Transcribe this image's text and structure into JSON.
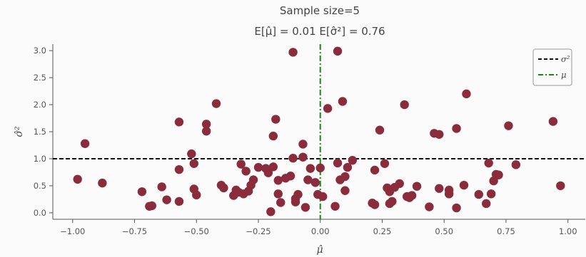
{
  "chart_data": {
    "type": "scatter",
    "title": "Sample size=5",
    "subtitle": "E[μ̂] = 0.01 E[σ̂²] = 0.76",
    "xlabel": "μ̂",
    "ylabel": "σ̂²",
    "xlim": [
      -1.08,
      1.07
    ],
    "ylim": [
      -0.12,
      3.12
    ],
    "xticks": [
      -1.0,
      -0.75,
      -0.5,
      -0.25,
      0.0,
      0.25,
      0.5,
      0.75,
      1.0
    ],
    "xtick_labels": [
      "−1.00",
      "−0.75",
      "−0.50",
      "−0.25",
      "0.00",
      "0.25",
      "0.50",
      "0.75",
      "1.00"
    ],
    "yticks": [
      0.0,
      0.5,
      1.0,
      1.5,
      2.0,
      2.5,
      3.0
    ],
    "ytick_labels": [
      "0.0",
      "0.5",
      "1.0",
      "1.5",
      "2.0",
      "2.5",
      "3.0"
    ],
    "grid": false,
    "legend_position": "top-right",
    "reference_lines": [
      {
        "name": "σ²",
        "orientation": "horizontal",
        "value": 1.0,
        "style": "dashed",
        "color": "#111111"
      },
      {
        "name": "μ",
        "orientation": "vertical",
        "value": 0.0,
        "style": "dashdot",
        "color": "#138a13"
      }
    ],
    "series": [
      {
        "color": "#8b2c3c",
        "x": [
          -0.98,
          -0.95,
          -0.88,
          -0.72,
          -0.69,
          -0.68,
          -0.64,
          -0.62,
          -0.57,
          -0.57,
          -0.57,
          -0.52,
          -0.51,
          -0.51,
          -0.5,
          -0.46,
          -0.46,
          -0.42,
          -0.4,
          -0.39,
          -0.35,
          -0.34,
          -0.33,
          -0.32,
          -0.31,
          -0.3,
          -0.29,
          -0.28,
          -0.27,
          -0.25,
          -0.22,
          -0.21,
          -0.2,
          -0.19,
          -0.19,
          -0.18,
          -0.17,
          -0.17,
          -0.16,
          -0.14,
          -0.12,
          -0.11,
          -0.11,
          -0.1,
          -0.1,
          -0.09,
          -0.07,
          -0.07,
          -0.06,
          -0.05,
          -0.04,
          -0.02,
          -0.01,
          0.0,
          0.01,
          0.03,
          0.06,
          0.07,
          0.07,
          0.08,
          0.09,
          0.1,
          0.1,
          0.11,
          0.13,
          0.21,
          0.22,
          0.22,
          0.24,
          0.26,
          0.27,
          0.28,
          0.28,
          0.29,
          0.3,
          0.32,
          0.34,
          0.35,
          0.36,
          0.37,
          0.39,
          0.44,
          0.46,
          0.48,
          0.48,
          0.52,
          0.52,
          0.55,
          0.55,
          0.58,
          0.59,
          0.64,
          0.67,
          0.68,
          0.69,
          0.7,
          0.71,
          0.72,
          0.76,
          0.79,
          0.94,
          0.97
        ],
        "y": [
          0.62,
          1.28,
          0.55,
          0.39,
          0.12,
          0.13,
          0.48,
          0.24,
          1.68,
          0.8,
          0.21,
          1.09,
          0.91,
          0.44,
          0.33,
          1.64,
          1.51,
          2.02,
          0.51,
          0.46,
          0.32,
          0.42,
          0.38,
          0.9,
          0.35,
          0.77,
          0.4,
          0.51,
          0.61,
          0.84,
          0.82,
          0.74,
          0.02,
          1.42,
          0.85,
          1.73,
          0.6,
          0.35,
          0.19,
          0.64,
          0.68,
          2.97,
          1.01,
          0.2,
          0.26,
          0.34,
          1.27,
          1.03,
          0.1,
          0.61,
          0.82,
          0.56,
          0.34,
          0.83,
          0.3,
          1.93,
          0.12,
          0.92,
          2.99,
          0.61,
          2.06,
          0.67,
          0.41,
          0.84,
          0.97,
          0.18,
          0.79,
          0.15,
          1.53,
          0.91,
          0.46,
          0.17,
          0.39,
          0.21,
          0.47,
          0.54,
          2.0,
          0.3,
          0.28,
          0.32,
          0.49,
          0.11,
          1.47,
          1.45,
          0.45,
          0.42,
          0.35,
          1.56,
          0.09,
          0.51,
          2.2,
          0.34,
          0.17,
          0.92,
          0.35,
          0.59,
          0.71,
          0.7,
          1.61,
          0.89,
          1.69,
          0.5
        ]
      }
    ]
  }
}
